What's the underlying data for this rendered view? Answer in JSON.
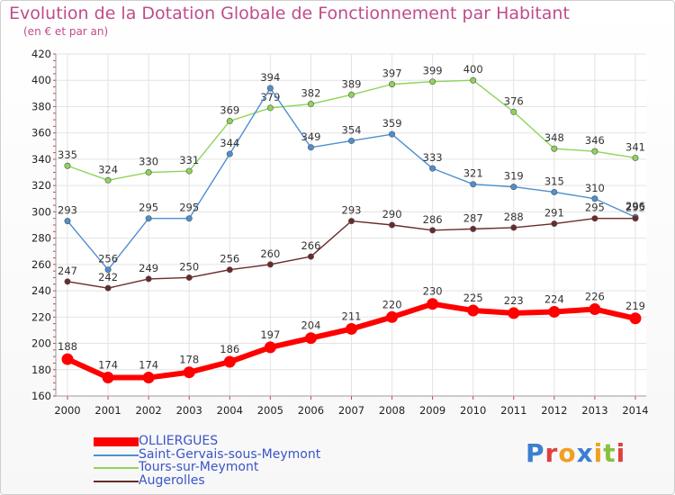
{
  "title": "Evolution de la Dotation Globale de Fonctionnement par Habitant",
  "subtitle": "(en € et par an)",
  "logo_text": "Proxiti",
  "chart_data": {
    "type": "line",
    "x": [
      2000,
      2001,
      2002,
      2003,
      2004,
      2005,
      2006,
      2007,
      2008,
      2009,
      2010,
      2011,
      2012,
      2013,
      2014
    ],
    "ylim": [
      160,
      420
    ],
    "yticks": [
      160,
      180,
      200,
      220,
      240,
      260,
      280,
      300,
      320,
      340,
      360,
      380,
      400,
      420
    ],
    "grid": true,
    "legend_position": "bottom-left",
    "series": [
      {
        "name": "Tours-sur-Meymont",
        "color": "#8fd35a",
        "values": [
          335,
          324,
          330,
          331,
          369,
          379,
          382,
          389,
          397,
          399,
          400,
          376,
          348,
          346,
          341
        ]
      },
      {
        "name": "Saint-Gervais-sous-Meymont",
        "color": "#4f8fd0",
        "values": [
          293,
          256,
          295,
          295,
          344,
          394,
          349,
          354,
          359,
          333,
          321,
          319,
          315,
          310,
          296
        ]
      },
      {
        "name": "Augerolles",
        "color": "#6b2a2a",
        "values": [
          247,
          242,
          249,
          250,
          256,
          260,
          266,
          293,
          290,
          286,
          287,
          288,
          291,
          295,
          295
        ]
      },
      {
        "name": "OLLIERGUES",
        "color": "#ff0000",
        "values": [
          188,
          174,
          174,
          178,
          186,
          197,
          204,
          211,
          220,
          230,
          225,
          223,
          224,
          226,
          219
        ]
      }
    ]
  },
  "legend": [
    {
      "label": "OLLIERGUES",
      "color": "#ff0000",
      "thick": true
    },
    {
      "label": "Saint-Gervais-sous-Meymont",
      "color": "#4f8fd0",
      "thick": false
    },
    {
      "label": "Tours-sur-Meymont",
      "color": "#8fd35a",
      "thick": false
    },
    {
      "label": "Augerolles",
      "color": "#6b2a2a",
      "thick": false
    }
  ]
}
